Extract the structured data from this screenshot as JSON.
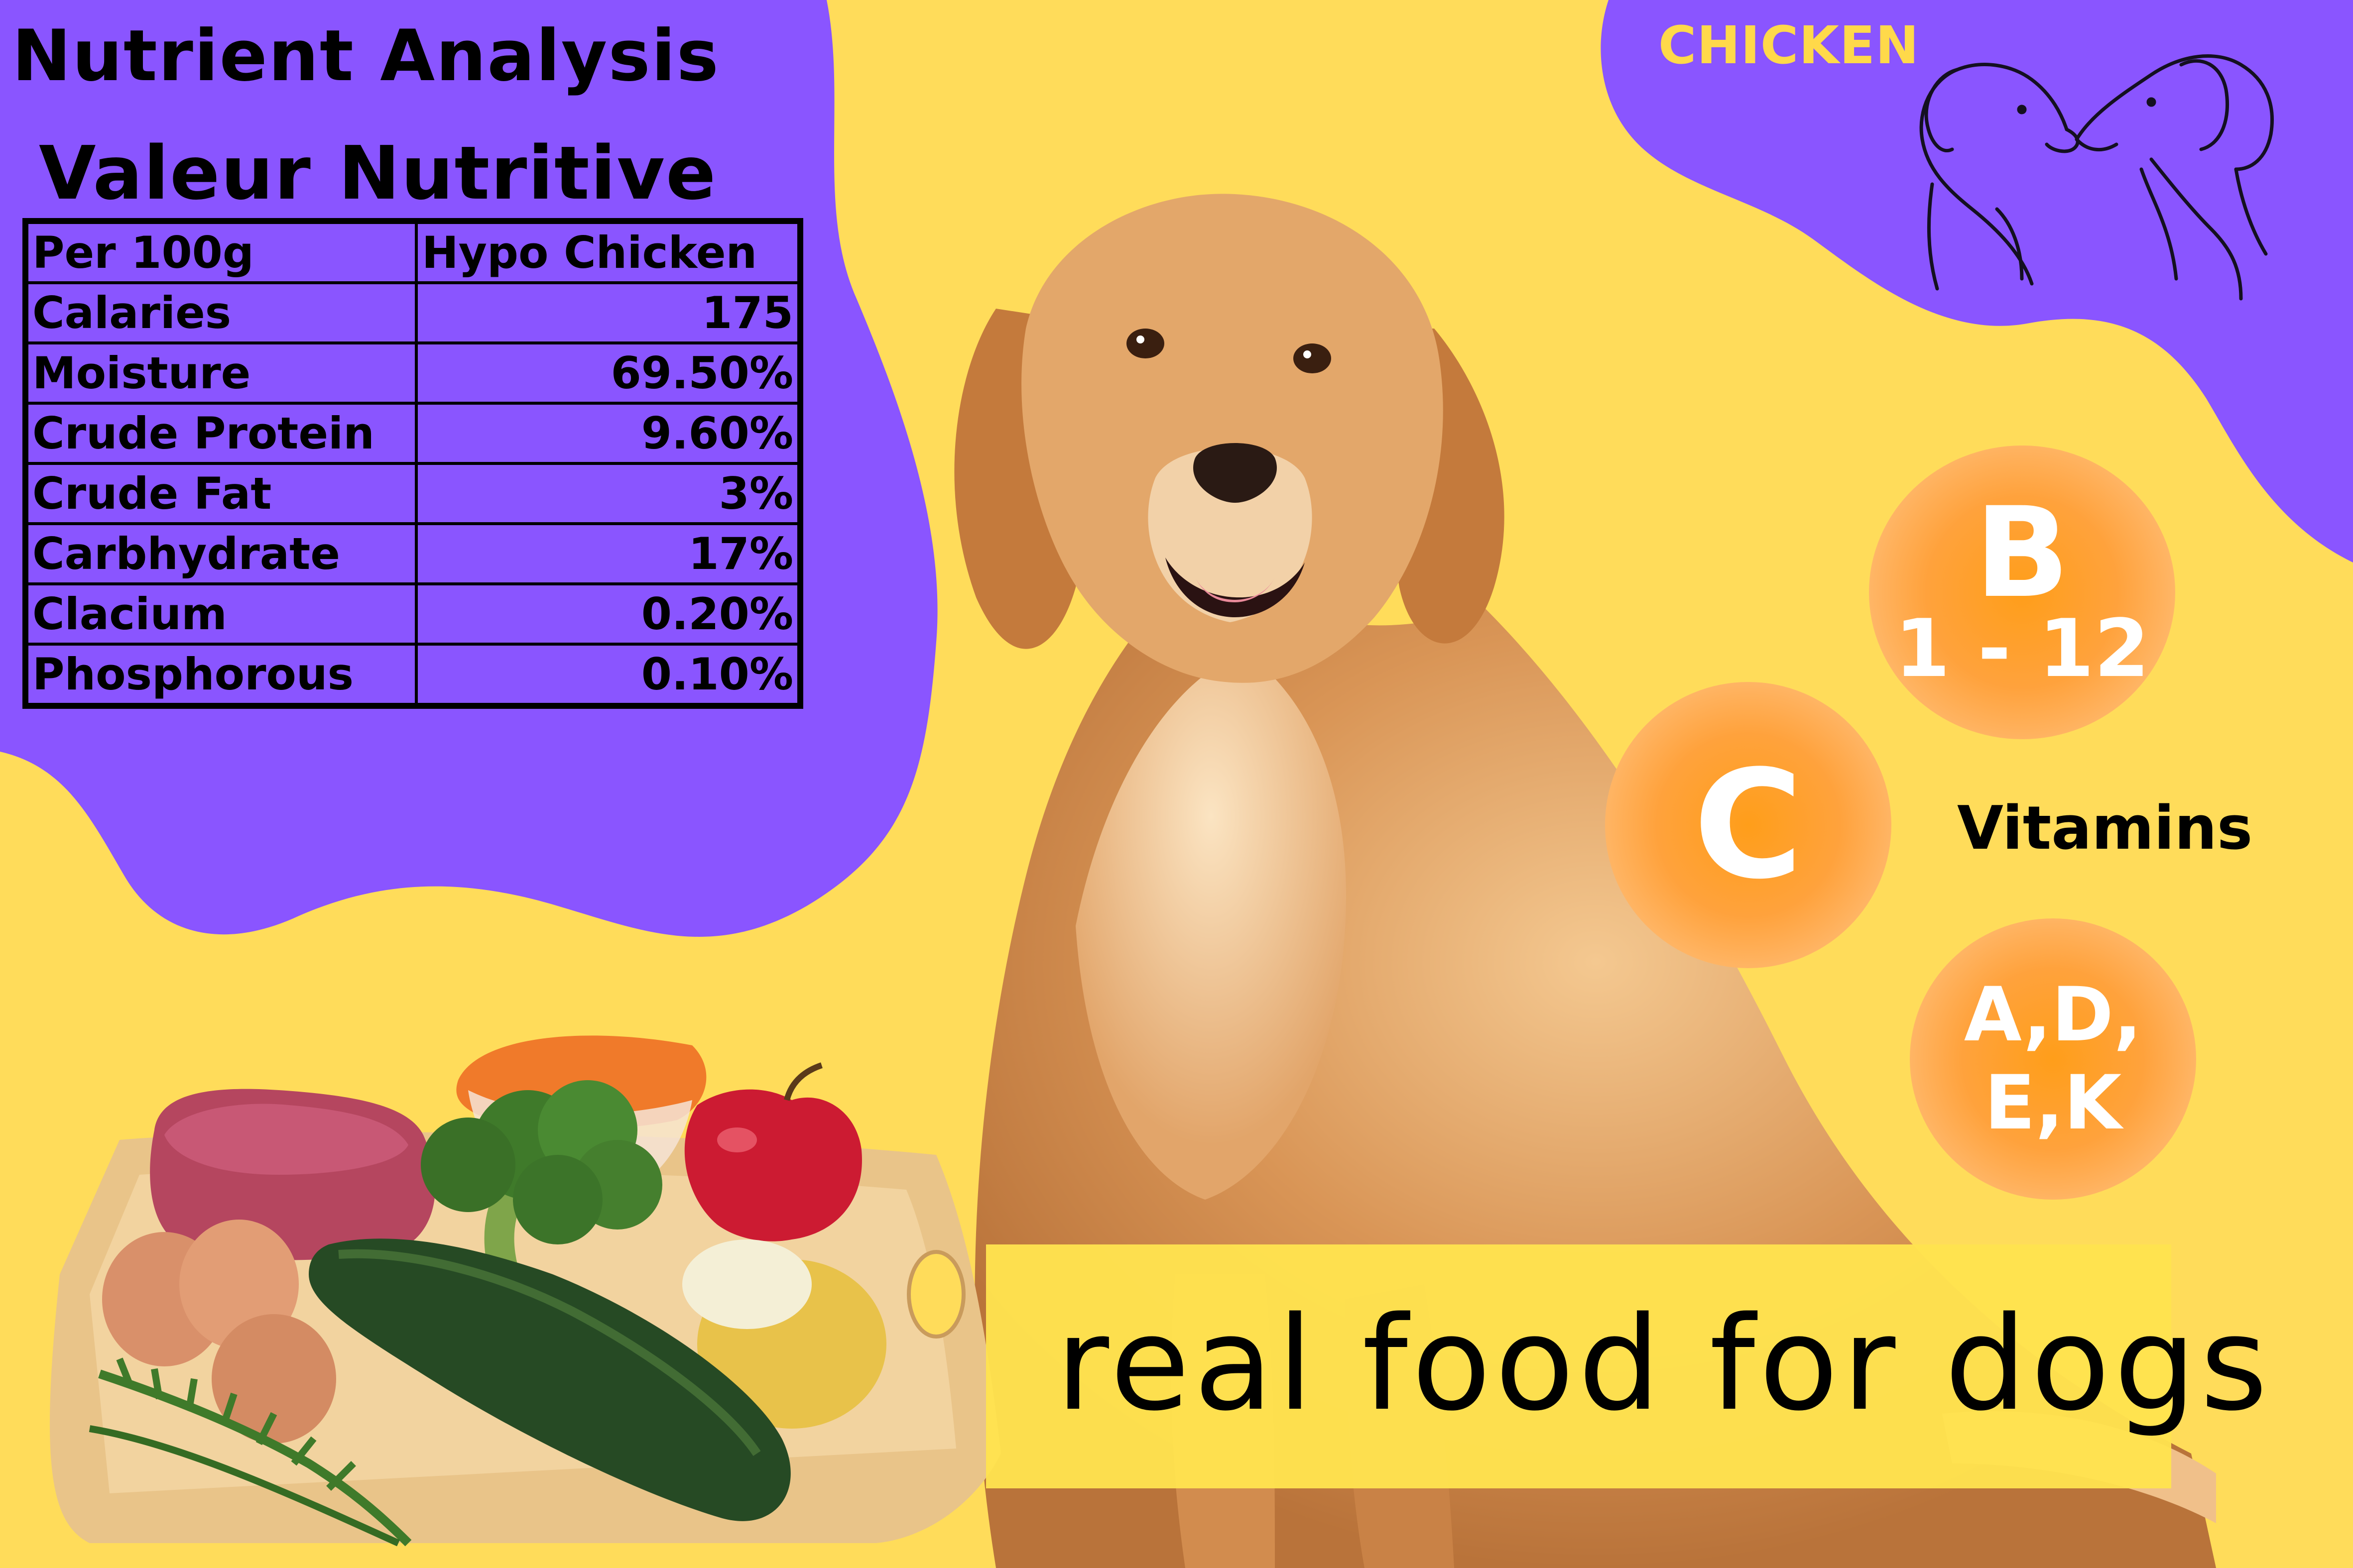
{
  "heading": {
    "english": "Nutrient Analysis",
    "french": "Valeur Nutritive"
  },
  "nutrient_table": {
    "header": [
      "Per 100g",
      "Hypo Chicken"
    ],
    "rows": [
      {
        "label": "Calaries",
        "value": "175"
      },
      {
        "label": "Moisture",
        "value": "69.50%"
      },
      {
        "label": "Crude Protein",
        "value": "9.60%"
      },
      {
        "label": "Crude Fat",
        "value": "3%"
      },
      {
        "label": "Carbhydrate",
        "value": "17%"
      },
      {
        "label": "Clacium",
        "value": "0.20%"
      },
      {
        "label": "Phosphorous",
        "value": "0.10%"
      }
    ]
  },
  "flavor": "CHICKEN",
  "vitamins": {
    "label": "Vitamins",
    "b_letter": "B",
    "b_range": "1 - 12",
    "c_letter": "C",
    "adek_line1": "A,D,",
    "adek_line2": "E,K"
  },
  "tagline": "real food for dogs",
  "colors": {
    "background_yellow": "#ffdc5a",
    "purple_blob": "#8a55ff",
    "vitamin_orange": "#ffa23c",
    "flavor_text": "#ffd94a",
    "tagline_banner": "#ffe34f"
  },
  "icons": {
    "dogs": "two-dogs-line-art-icon",
    "dog_photo": "golden-retriever-illustration",
    "food_photo": "raw-food-on-cutting-board-illustration"
  }
}
